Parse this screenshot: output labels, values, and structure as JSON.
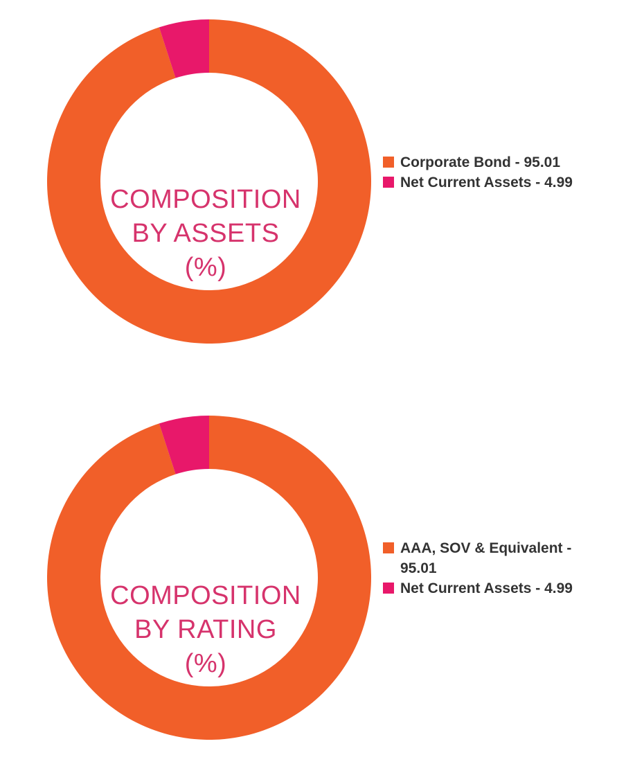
{
  "colors": {
    "primary_slice": "#f15f29",
    "secondary_slice": "#e8186a",
    "title_text": "#d6336c",
    "legend_text": "#333333"
  },
  "chart_data": [
    {
      "type": "pie",
      "variant": "donut",
      "title_lines": [
        "COMPOSITION",
        "BY ASSETS",
        "(%)"
      ],
      "legend_placement": "right",
      "categories": [
        "Corporate Bond",
        "Net Current Assets"
      ],
      "values": [
        95.01,
        4.99
      ],
      "colors": [
        "#f15f29",
        "#e8186a"
      ],
      "legend_labels": [
        "Corporate Bond - 95.01",
        "Net Current Assets - 4.99"
      ]
    },
    {
      "type": "pie",
      "variant": "donut",
      "title_lines": [
        "COMPOSITION",
        "BY RATING",
        "(%)"
      ],
      "legend_placement": "right",
      "categories": [
        "AAA, SOV & Equivalent",
        "Net Current Assets"
      ],
      "values": [
        95.01,
        4.99
      ],
      "colors": [
        "#f15f29",
        "#e8186a"
      ],
      "legend_labels": [
        "AAA, SOV & Equivalent - 95.01",
        "Net Current Assets - 4.99"
      ]
    }
  ]
}
